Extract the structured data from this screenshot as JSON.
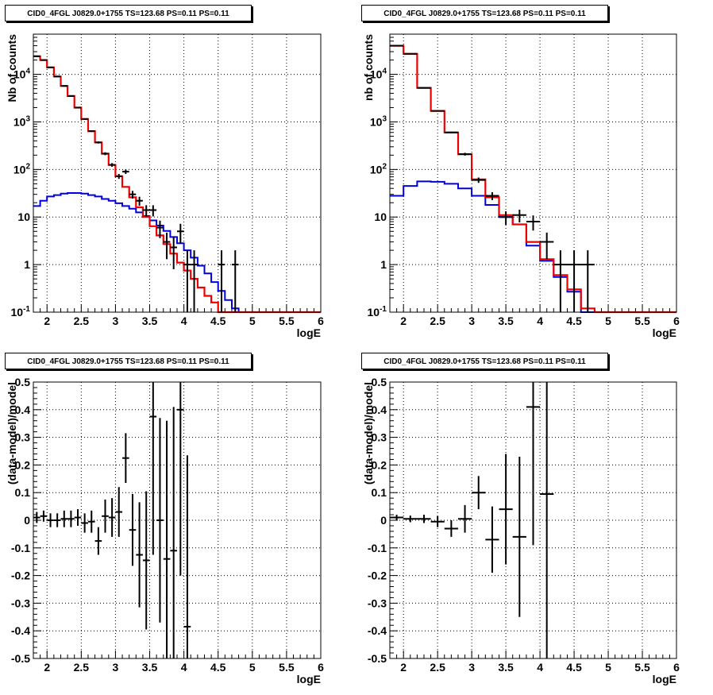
{
  "pads": [
    {
      "title": "CID0_4FGL J0829.0+1755 TS=123.68 PS=0.11 PS=0.11",
      "ylabel": "Nb of counts",
      "xlabel": "logE"
    },
    {
      "title": "CID0_4FGL J0829.0+1755 TS=123.68 PS=0.11 PS=0.11",
      "ylabel": "nb of counts",
      "xlabel": "logE"
    },
    {
      "title": "CID0_4FGL J0829.0+1755 TS=123.68 PS=0.11 PS=0.11",
      "ylabel": "(data-model)/model",
      "xlabel": "logE"
    },
    {
      "title": "CID0_4FGL J0829.0+1755 TS=123.68 PS=0.11 PS=0.11",
      "ylabel": "(data-model)/model",
      "xlabel": "logE"
    }
  ],
  "colors": {
    "total_model": "#ee0000",
    "source_model": "#0000dd",
    "data": "#000000"
  },
  "chart_data": [
    {
      "type": "line",
      "title": "CID0_4FGL J0829.0+1755 TS=123.68 PS=0.11 PS=0.11",
      "xlabel": "logE",
      "ylabel": "Nb of counts",
      "xlim": [
        1.8,
        6.0
      ],
      "ylim": [
        0.1,
        70000
      ],
      "yscale": "log",
      "grid": true,
      "x_ticks": [
        "2",
        "2.5",
        "3",
        "3.5",
        "4",
        "4.5",
        "5",
        "5.5",
        "6"
      ],
      "y_ticks": [
        "10^-1",
        "1",
        "10",
        "10^2",
        "10^3",
        "10^4"
      ],
      "bin_edges": [
        1.8,
        1.9,
        2.0,
        2.1,
        2.2,
        2.3,
        2.4,
        2.5,
        2.6,
        2.7,
        2.8,
        2.9,
        3.0,
        3.1,
        3.2,
        3.3,
        3.4,
        3.5,
        3.6,
        3.7,
        3.8,
        3.9,
        4.0,
        4.1,
        4.2,
        4.3,
        4.4,
        4.5,
        4.6,
        4.7,
        4.8,
        4.9,
        5.0,
        5.1,
        5.2,
        5.3,
        5.4,
        5.5,
        5.6,
        5.7,
        5.8,
        5.9,
        6.0
      ],
      "series": [
        {
          "name": "",
          "role": "total_model",
          "values": [
            24000,
            20000,
            14000,
            9000,
            5700,
            3500,
            2000,
            1150,
            640,
            370,
            215,
            125,
            72,
            43,
            26,
            16,
            10,
            6.4,
            4.1,
            2.7,
            1.7,
            1.1,
            0.75,
            0.5,
            0.33,
            0.22,
            0.16,
            0.1,
            0.1,
            0.1,
            0.1,
            0.1,
            0.1,
            0.1,
            0.1,
            0.1,
            0.1,
            0.1,
            0.1,
            0.1,
            0.1,
            0.1
          ]
        },
        {
          "name": "",
          "role": "source_model",
          "values": [
            17,
            22,
            27,
            29,
            31,
            32,
            32,
            31,
            29,
            27,
            24,
            22,
            19.5,
            17,
            15,
            12.5,
            10.5,
            8.5,
            6.6,
            5.1,
            3.8,
            2.8,
            2.0,
            1.4,
            0.95,
            0.65,
            0.43,
            0.28,
            0.18,
            0.12,
            0.1,
            0.1,
            0.1,
            0.1,
            0.1,
            0.1,
            0.1,
            0.1,
            0.1,
            0.1,
            0.1,
            0.1
          ]
        }
      ],
      "data_points": {
        "x": [
          1.85,
          1.95,
          2.05,
          2.15,
          2.25,
          2.35,
          2.45,
          2.55,
          2.65,
          2.75,
          2.85,
          2.95,
          3.05,
          3.15,
          3.25,
          3.35,
          3.45,
          3.55,
          3.65,
          3.75,
          3.85,
          3.95,
          4.05,
          4.15,
          4.55,
          4.75
        ],
        "y": [
          24000,
          20000,
          14000,
          9000,
          5700,
          3500,
          2000,
          1150,
          640,
          370,
          215,
          125,
          72,
          90,
          30,
          22,
          14,
          14,
          6,
          3,
          2.3,
          5,
          1,
          1,
          1,
          1
        ],
        "yerr": [
          155,
          141,
          118,
          95,
          75,
          59,
          45,
          34,
          25,
          19,
          15,
          11,
          8.5,
          9.5,
          5.5,
          4.7,
          3.7,
          3.7,
          2.4,
          1.7,
          1.5,
          2.2,
          1,
          1,
          1,
          1
        ]
      }
    },
    {
      "type": "line",
      "title": "CID0_4FGL J0829.0+1755 TS=123.68 PS=0.11 PS=0.11",
      "xlabel": "logE",
      "ylabel": "nb of counts",
      "xlim": [
        1.8,
        6.0
      ],
      "ylim": [
        0.1,
        70000
      ],
      "yscale": "log",
      "grid": true,
      "x_ticks": [
        "2",
        "2.5",
        "3",
        "3.5",
        "4",
        "4.5",
        "5",
        "5.5",
        "6"
      ],
      "y_ticks": [
        "10^-1",
        "1",
        "10",
        "10^2",
        "10^3",
        "10^4"
      ],
      "bin_edges": [
        1.8,
        2.0,
        2.2,
        2.4,
        2.6,
        2.8,
        3.0,
        3.2,
        3.4,
        3.6,
        3.8,
        4.0,
        4.2,
        4.4,
        4.6,
        4.8,
        5.0,
        5.2,
        5.4,
        5.6,
        5.8,
        6.0
      ],
      "series": [
        {
          "name": "",
          "role": "total_model",
          "values": [
            40000,
            27000,
            5200,
            1700,
            600,
            210,
            62,
            26,
            11,
            7,
            3,
            1.3,
            0.6,
            0.3,
            0.12,
            0.1,
            0.1,
            0.1,
            0.1,
            0.1,
            0.1
          ]
        },
        {
          "name": "",
          "role": "source_model",
          "values": [
            28,
            45,
            56,
            55,
            50,
            40,
            28,
            18,
            10,
            7,
            2.5,
            1.2,
            0.55,
            0.27,
            0.1,
            0.1,
            0.1,
            0.1,
            0.1,
            0.1,
            0.1
          ]
        }
      ],
      "data_points": {
        "x": [
          1.9,
          2.1,
          2.3,
          2.5,
          2.7,
          2.9,
          3.1,
          3.3,
          3.5,
          3.7,
          3.9,
          4.1,
          4.3,
          4.5,
          4.7
        ],
        "y": [
          40000,
          27000,
          5200,
          1700,
          600,
          210,
          60,
          28,
          10,
          11,
          8,
          3,
          1,
          1,
          1
        ],
        "yerr": [
          200,
          164,
          72,
          41,
          24,
          14.5,
          7.7,
          5.3,
          3.2,
          3.3,
          2.8,
          1.7,
          1,
          1,
          1
        ]
      }
    },
    {
      "type": "scatter",
      "title": "CID0_4FGL J0829.0+1755 TS=123.68 PS=0.11 PS=0.11",
      "xlabel": "logE",
      "ylabel": "(data-model)/model",
      "xlim": [
        1.8,
        6.0
      ],
      "ylim": [
        -0.5,
        0.5
      ],
      "grid": true,
      "x_ticks": [
        "2",
        "2.5",
        "3",
        "3.5",
        "4",
        "4.5",
        "5",
        "5.5",
        "6"
      ],
      "y_ticks": [
        "-0.5",
        "-0.4",
        "-0.3",
        "-0.2",
        "-0.1",
        "0",
        "0.1",
        "0.2",
        "0.3",
        "0.4",
        "0.5"
      ],
      "data_points": {
        "x": [
          1.85,
          1.95,
          2.05,
          2.15,
          2.25,
          2.35,
          2.45,
          2.55,
          2.65,
          2.75,
          2.85,
          2.95,
          3.05,
          3.15,
          3.25,
          3.35,
          3.45,
          3.55,
          3.65,
          3.75,
          3.85,
          3.95,
          4.05
        ],
        "y": [
          0.01,
          0.015,
          0.0,
          0.0,
          0.005,
          0.005,
          0.01,
          -0.01,
          -0.005,
          -0.075,
          0.015,
          0.01,
          0.03,
          0.225,
          -0.035,
          -0.125,
          -0.145,
          0.375,
          0.0,
          -0.14,
          -0.11,
          0.4,
          -0.385
        ],
        "yerr": [
          0.02,
          0.02,
          0.025,
          0.025,
          0.03,
          0.03,
          0.03,
          0.035,
          0.04,
          0.05,
          0.06,
          0.07,
          0.09,
          0.09,
          0.13,
          0.19,
          0.25,
          0.5,
          0.37,
          0.5,
          0.52,
          0.6,
          0.62
        ]
      }
    },
    {
      "type": "scatter",
      "title": "CID0_4FGL J0829.0+1755 TS=123.68 PS=0.11 PS=0.11",
      "xlabel": "logE",
      "ylabel": "(data-model)/model",
      "xlim": [
        1.8,
        6.0
      ],
      "ylim": [
        -0.5,
        0.5
      ],
      "grid": true,
      "x_ticks": [
        "2",
        "2.5",
        "3",
        "3.5",
        "4",
        "4.5",
        "5",
        "5.5",
        "6"
      ],
      "y_ticks": [
        "-0.5",
        "-0.4",
        "-0.3",
        "-0.2",
        "-0.1",
        "0",
        "0.1",
        "0.2",
        "0.3",
        "0.4",
        "0.5"
      ],
      "data_points": {
        "x": [
          1.9,
          2.1,
          2.3,
          2.5,
          2.7,
          2.9,
          3.1,
          3.3,
          3.5,
          3.7,
          3.9,
          4.1
        ],
        "y": [
          0.01,
          0.005,
          0.005,
          -0.005,
          -0.03,
          0.005,
          0.1,
          -0.07,
          0.04,
          -0.06,
          0.41,
          0.095
        ],
        "yerr": [
          0.01,
          0.012,
          0.015,
          0.02,
          0.03,
          0.05,
          0.06,
          0.12,
          0.2,
          0.29,
          0.5,
          0.75
        ]
      }
    }
  ]
}
